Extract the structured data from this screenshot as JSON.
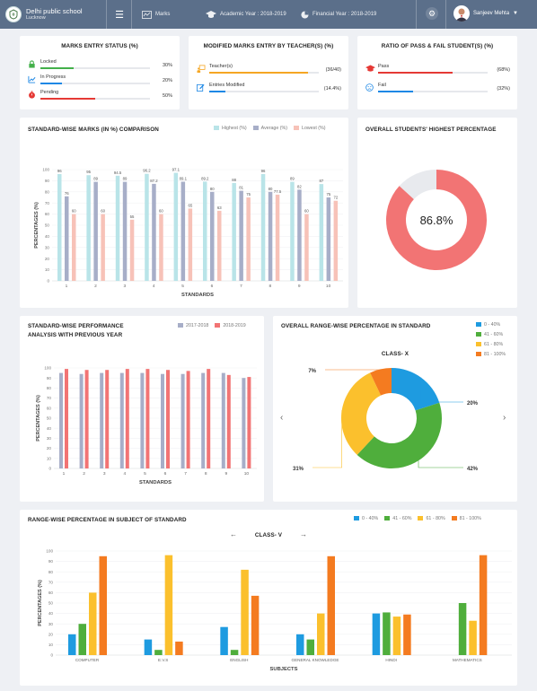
{
  "header": {
    "school_name": "Delhi public school",
    "school_city": "Lucknow",
    "nav_marks": "Marks",
    "academic_year": "Academic Year : 2018-2019",
    "financial_year": "Financial Year : 2018-2019",
    "user_name": "Sanjeev Mehta"
  },
  "marks_entry": {
    "title": "MARKS ENTRY STATUS (%)",
    "items": [
      {
        "label": "Locked",
        "value": "30%",
        "fill": 0.3,
        "color": "#43b04a",
        "icon": "lock-icon"
      },
      {
        "label": "In Progress",
        "value": "20%",
        "fill": 0.2,
        "color": "#1e88e5",
        "icon": "trend-icon"
      },
      {
        "label": "Pending",
        "value": "50%",
        "fill": 0.5,
        "color": "#e53935",
        "icon": "stopwatch-icon"
      }
    ]
  },
  "modified_marks": {
    "title": "MODIFIED MARKS ENTRY BY TEACHER(S) (%)",
    "items": [
      {
        "label": "Teacher(s)",
        "value": "(36/40)",
        "fill": 0.9,
        "color": "#f5a623",
        "icon": "teacher-icon"
      },
      {
        "label": "Entries Modified",
        "value": "(14.4%)",
        "fill": 0.144,
        "color": "#1e88e5",
        "icon": "edit-icon"
      }
    ]
  },
  "pass_fail": {
    "title": "RATIO OF PASS & FAIL STUDENT(S) (%)",
    "items": [
      {
        "label": "Pass",
        "value": "(68%)",
        "fill": 0.68,
        "color": "#e53935",
        "icon": "graduation-cap-icon"
      },
      {
        "label": "Fail",
        "value": "(32%)",
        "fill": 0.32,
        "color": "#1e88e5",
        "icon": "sad-face-icon"
      }
    ]
  },
  "standard_marks": {
    "title": "STANDARD-WISE MARKS (IN %) COMPARISON",
    "legend": [
      "Highest (%)",
      "Average (%)",
      "Lowest (%)"
    ],
    "colors": [
      "#b9e4e8",
      "#a7aec8",
      "#f7c2b8"
    ],
    "chart_data": {
      "type": "bar",
      "categories": [
        "1",
        "2",
        "3",
        "4",
        "5",
        "6",
        "7",
        "8",
        "9",
        "10"
      ],
      "series": [
        {
          "name": "Highest (%)",
          "values": [
            96,
            95,
            94.5,
            96.2,
            97.1,
            89.2,
            88,
            96,
            89,
            87
          ]
        },
        {
          "name": "Average (%)",
          "values": [
            76,
            89,
            89,
            87.2,
            89.1,
            80,
            81,
            80,
            82,
            75
          ]
        },
        {
          "name": "Lowest (%)",
          "values": [
            60,
            60,
            55,
            60,
            65,
            63,
            75,
            77.5,
            60,
            72
          ]
        }
      ],
      "labels": [
        [
          "96",
          "95",
          "94.5",
          "96.2",
          "97.1",
          "89.2",
          "88",
          "96",
          "89",
          "87"
        ],
        [
          "76",
          "89",
          "89",
          "87.2",
          "89.1",
          "80",
          "81",
          "80",
          "82",
          "75"
        ],
        [
          "60",
          "60",
          "55",
          "60",
          "65",
          "63",
          "75",
          "77.5",
          "60",
          "72"
        ]
      ],
      "xlabel": "STANDARDS",
      "ylabel": "PERCENTAGES (%)",
      "ylim": [
        0,
        100
      ],
      "yticks": [
        "0",
        "10",
        "20",
        "30",
        "40",
        "50",
        "60",
        "70",
        "80",
        "90",
        "100"
      ]
    }
  },
  "highest_pct": {
    "title": "OVERALL STUDENTS' HIGHEST PERCENTAGE",
    "value_text": "86.8%",
    "value": 86.8,
    "colors": [
      "#f27474",
      "#e8eaee"
    ]
  },
  "performance": {
    "title_line1": "STANDARD-WISE PERFORMANCE",
    "title_line2": "ANALYSIS WITH PREVIOUS YEAR",
    "legend": [
      "2017-2018",
      "2018-2019"
    ],
    "colors": [
      "#a7aec8",
      "#f27474"
    ],
    "chart_data": {
      "type": "bar",
      "categories": [
        "1",
        "2",
        "3",
        "4",
        "5",
        "6",
        "7",
        "8",
        "9",
        "10"
      ],
      "series": [
        {
          "name": "2017-2018",
          "values": [
            95,
            94,
            95,
            95,
            95,
            94,
            94,
            95,
            95,
            90
          ]
        },
        {
          "name": "2018-2019",
          "values": [
            99,
            98,
            98,
            99,
            99,
            98,
            97,
            99,
            93,
            91
          ]
        }
      ],
      "xlabel": "STANDARDS",
      "ylabel": "PERCENTAGES (%)",
      "ylim": [
        0,
        100
      ],
      "yticks": [
        "0",
        "10",
        "20",
        "30",
        "40",
        "50",
        "60",
        "70",
        "80",
        "90",
        "100"
      ]
    }
  },
  "range_wise": {
    "title": "OVERALL RANGE-WISE PERCENTAGE IN STANDARD",
    "class_label": "CLASS- X",
    "legend": [
      "0 - 40%",
      "41 - 60%",
      "61 - 80%",
      "81 - 100%"
    ],
    "colors": [
      "#1e9be0",
      "#4fae3c",
      "#fbc02d",
      "#f47b20"
    ],
    "chart_data": {
      "type": "pie",
      "categories": [
        "0 - 40%",
        "41 - 60%",
        "61 - 80%",
        "81 - 100%"
      ],
      "values": [
        20,
        42,
        31,
        7
      ],
      "labels": [
        "20%",
        "42%",
        "31%",
        "7%"
      ]
    }
  },
  "subject_range": {
    "title": "RANGE-WISE PERCENTAGE IN SUBJECT OF STANDARD",
    "class_label": "CLASS- V",
    "legend": [
      "0 - 40%",
      "41 - 60%",
      "61 - 80%",
      "81 - 100%"
    ],
    "colors": [
      "#1e9be0",
      "#4fae3c",
      "#fbc02d",
      "#f47b20"
    ],
    "chart_data": {
      "type": "bar",
      "categories": [
        "COMPUTER",
        "E.V.S",
        "ENGLISH",
        "GENERAL KNOWLEDGE",
        "HINDI",
        "MATHEMATICS"
      ],
      "series": [
        {
          "name": "0 - 40%",
          "values": [
            20,
            15,
            27,
            20,
            40,
            0
          ]
        },
        {
          "name": "41 - 60%",
          "values": [
            30,
            5,
            5,
            15,
            41,
            50
          ]
        },
        {
          "name": "61 - 80%",
          "values": [
            60,
            96,
            82,
            40,
            37,
            33
          ]
        },
        {
          "name": "81 - 100%",
          "values": [
            95,
            13,
            57,
            95,
            39,
            96
          ]
        }
      ],
      "xlabel": "SUBJECTS",
      "ylabel": "PERCENTAGES (%)",
      "ylim": [
        0,
        100
      ],
      "yticks": [
        "0",
        "10",
        "20",
        "30",
        "40",
        "50",
        "60",
        "70",
        "80",
        "90",
        "100"
      ]
    }
  }
}
